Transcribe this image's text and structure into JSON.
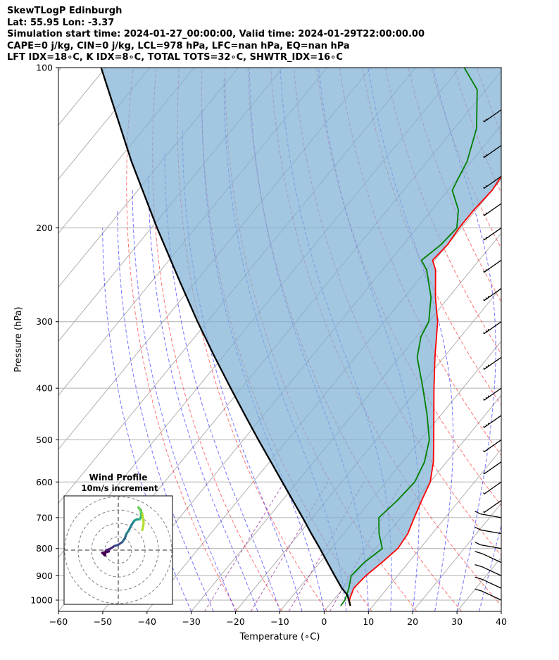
{
  "header": {
    "line1": "SkewTLogP Edinburgh",
    "line2": "Lat: 55.95   Lon: -3.37",
    "line3": "Simulation start time: 2024-01-27_00:00:00, Valid time: 2024-01-29T22:00:00.00",
    "line4": "CAPE=0 j/kg, CIN=0 j/kg, LCL=978 hPa, LFC=nan hPa, EQ=nan hPa",
    "line5": "LFT IDX=18∘C, K IDX=8∘C, TOTAL TOTS=32∘C, SHWTR_IDX=16∘C"
  },
  "chart_data": [
    {
      "type": "line",
      "title": "SkewTLogP Edinburgh",
      "xlabel": "Temperature (∘C)",
      "ylabel": "Pressure (hPa)",
      "xlim": [
        -60,
        40
      ],
      "ylim": [
        1050,
        100
      ],
      "x_ticks": [
        -60,
        -50,
        -40,
        -30,
        -20,
        -10,
        0,
        10,
        20,
        30,
        40
      ],
      "x_tick_labels": [
        "−60",
        "−50",
        "−40",
        "−30",
        "−20",
        "−10",
        "0",
        "10",
        "20",
        "30",
        "40"
      ],
      "y_ticks": [
        100,
        200,
        300,
        400,
        500,
        600,
        700,
        800,
        900,
        1000
      ],
      "y_tick_labels": [
        "100",
        "200",
        "300",
        "400",
        "500",
        "600",
        "700",
        "800",
        "900",
        "1000"
      ],
      "y_scale": "log",
      "skew": true,
      "grid": true,
      "series": [
        {
          "name": "Temperature",
          "color": "#ff0000",
          "points": [
            [
              1025,
              4.9
            ],
            [
              1000,
              3.6
            ],
            [
              950,
              2.4
            ],
            [
              900,
              2.8
            ],
            [
              850,
              4.0
            ],
            [
              800,
              5.0
            ],
            [
              750,
              4.5
            ],
            [
              700,
              3.0
            ],
            [
              650,
              1.5
            ],
            [
              600,
              0.0
            ],
            [
              550,
              -3.0
            ],
            [
              500,
              -7.0
            ],
            [
              450,
              -11.5
            ],
            [
              400,
              -16.5
            ],
            [
              350,
              -22.0
            ],
            [
              300,
              -28.0
            ],
            [
              270,
              -33.0
            ],
            [
              240,
              -38.0
            ],
            [
              230,
              -40.5
            ],
            [
              215,
              -40.0
            ],
            [
              200,
              -40.5
            ],
            [
              185,
              -40.5
            ],
            [
              170,
              -40.0
            ],
            [
              160,
              -40.5
            ],
            [
              150,
              -42.0
            ],
            [
              130,
              -46.0
            ],
            [
              110,
              -50.0
            ],
            [
              100,
              -52.5
            ]
          ]
        },
        {
          "name": "Dewpoint",
          "color": "#008000",
          "points": [
            [
              1025,
              2.7
            ],
            [
              1000,
              2.6
            ],
            [
              950,
              1.3
            ],
            [
              900,
              -0.5
            ],
            [
              850,
              0.0
            ],
            [
              800,
              1.5
            ],
            [
              750,
              -2.0
            ],
            [
              700,
              -5.0
            ],
            [
              650,
              -4.0
            ],
            [
              600,
              -3.5
            ],
            [
              550,
              -5.0
            ],
            [
              500,
              -8.0
            ],
            [
              450,
              -13.0
            ],
            [
              400,
              -19.0
            ],
            [
              350,
              -26.0
            ],
            [
              320,
              -29.0
            ],
            [
              300,
              -30.0
            ],
            [
              270,
              -34.0
            ],
            [
              240,
              -40.0
            ],
            [
              230,
              -43.0
            ],
            [
              215,
              -41.5
            ],
            [
              200,
              -41.0
            ],
            [
              185,
              -44.0
            ],
            [
              170,
              -49.0
            ],
            [
              160,
              -50.0
            ],
            [
              150,
              -51.0
            ],
            [
              130,
              -55.0
            ],
            [
              110,
              -62.0
            ],
            [
              100,
              -69.0
            ]
          ]
        },
        {
          "name": "Parcel",
          "color": "#000000",
          "points": [
            [
              1025,
              4.9
            ],
            [
              978,
              2.2
            ],
            [
              950,
              -0.3
            ],
            [
              900,
              -4.2
            ],
            [
              850,
              -8.3
            ],
            [
              800,
              -12.6
            ],
            [
              750,
              -17.3
            ],
            [
              700,
              -22.2
            ],
            [
              650,
              -27.6
            ],
            [
              600,
              -33.4
            ],
            [
              550,
              -39.7
            ],
            [
              500,
              -46.6
            ],
            [
              450,
              -54.1
            ],
            [
              400,
              -62.4
            ],
            [
              350,
              -71.7
            ],
            [
              300,
              -82.2
            ],
            [
              250,
              -94.2
            ],
            [
              200,
              -108.7
            ],
            [
              150,
              -126.8
            ],
            [
              100,
              -151.0
            ]
          ]
        }
      ],
      "shaded_region": "between parcel and temperature",
      "isotherm_spacing": 10,
      "dry_adiabats_color": "#ff0000",
      "moist_adiabats_color": "#0000ff",
      "mixing_ratio_color": "#800080",
      "wind_barbs_side": "right"
    },
    {
      "type": "scatter",
      "title": "Wind Profile",
      "subtitle": "10m/s increment",
      "rings": [
        10,
        20,
        30,
        40
      ],
      "colormap": "viridis",
      "points": [
        [
          -7,
          -1
        ],
        [
          -12,
          -2
        ],
        [
          -10,
          -4
        ],
        [
          -9,
          0
        ],
        [
          -6,
          1
        ],
        [
          -3,
          3
        ],
        [
          0,
          4
        ],
        [
          3,
          6
        ],
        [
          5,
          9
        ],
        [
          6,
          12
        ],
        [
          8,
          15
        ],
        [
          10,
          19
        ],
        [
          12,
          22
        ],
        [
          14,
          23
        ],
        [
          16,
          23
        ],
        [
          17,
          25
        ],
        [
          17,
          30
        ],
        [
          15,
          32
        ],
        [
          18,
          27
        ],
        [
          19,
          20
        ],
        [
          18,
          15
        ]
      ]
    }
  ]
}
